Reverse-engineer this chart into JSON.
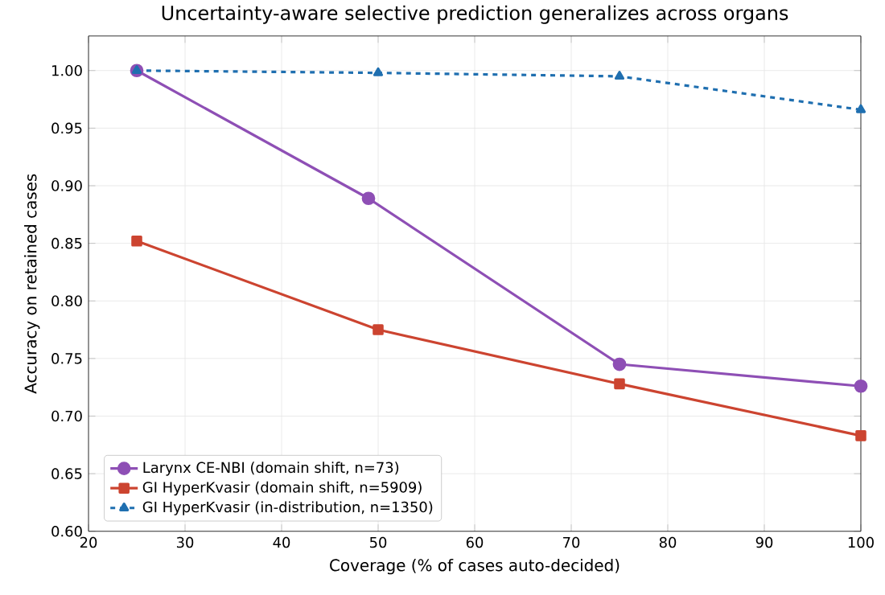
{
  "chart_data": {
    "type": "line",
    "title": "Uncertainty-aware selective prediction generalizes across organs",
    "xlabel": "Coverage (% of cases auto-decided)",
    "ylabel": "Accuracy on retained cases",
    "series": [
      {
        "name": "Larynx CE-NBI (domain shift, n=73)",
        "color": "#8e4fb5",
        "x": [
          25,
          49,
          75,
          100
        ],
        "values": [
          1.0,
          0.889,
          0.745,
          0.726
        ],
        "marker": "circle",
        "line_style": "solid"
      },
      {
        "name": "GI HyperKvasir (domain shift, n=5909)",
        "color": "#cc4430",
        "x": [
          25,
          50,
          75,
          100
        ],
        "values": [
          0.852,
          0.775,
          0.728,
          0.683
        ],
        "marker": "square",
        "line_style": "solid"
      },
      {
        "name": "GI HyperKvasir (in-distribution, n=1350)",
        "color": "#1f6fb0",
        "x": [
          25,
          50,
          75,
          100
        ],
        "values": [
          1.0,
          0.998,
          0.995,
          0.966
        ],
        "marker": "triangle",
        "line_style": "dashed"
      }
    ],
    "xlim": [
      20,
      100
    ],
    "xticks": [
      20,
      30,
      40,
      50,
      60,
      70,
      80,
      90,
      100
    ],
    "ylim": [
      0.6,
      1.03
    ],
    "yticks": [
      {
        "value": 0.6,
        "label": "0.60"
      },
      {
        "value": 0.65,
        "label": "0.65"
      },
      {
        "value": 0.7,
        "label": "0.70"
      },
      {
        "value": 0.75,
        "label": "0.75"
      },
      {
        "value": 0.8,
        "label": "0.80"
      },
      {
        "value": 0.85,
        "label": "0.85"
      },
      {
        "value": 0.9,
        "label": "0.90"
      },
      {
        "value": 0.95,
        "label": "0.95"
      },
      {
        "value": 1.0,
        "label": "1.00"
      }
    ],
    "grid": true,
    "legend": "bottom left"
  }
}
